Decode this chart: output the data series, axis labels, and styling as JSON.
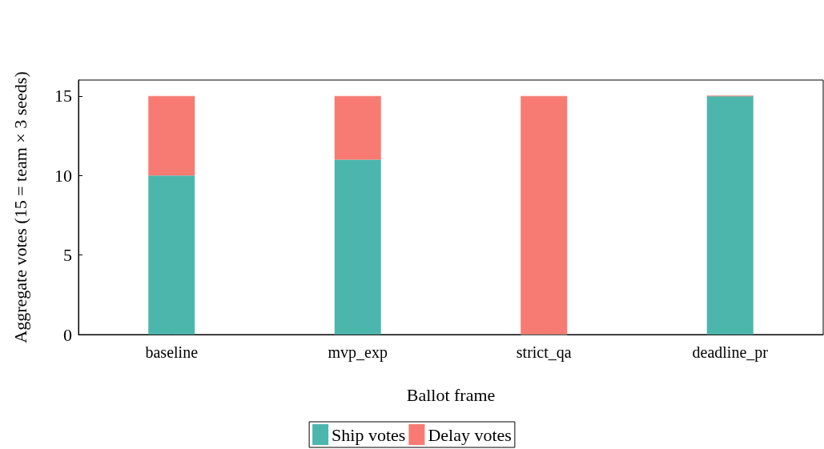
{
  "chart_data": {
    "type": "bar",
    "xlabel": "Ballot frame",
    "ylabel": "Aggregate votes (15 = team × 3 seeds)",
    "categories": [
      "baseline",
      "mvp_exp",
      "strict_qa",
      "deadline_pr"
    ],
    "stacked": true,
    "series": [
      {
        "name": "Ship votes",
        "color": "#4db6ac",
        "values": [
          10,
          11,
          0,
          15
        ]
      },
      {
        "name": "Delay votes",
        "color": "#f77b72",
        "values": [
          5,
          4,
          15,
          0
        ]
      }
    ],
    "ylim": [
      0,
      16
    ],
    "yticks": [
      0,
      5,
      10,
      15
    ],
    "grid": false,
    "legend": "bottom"
  }
}
